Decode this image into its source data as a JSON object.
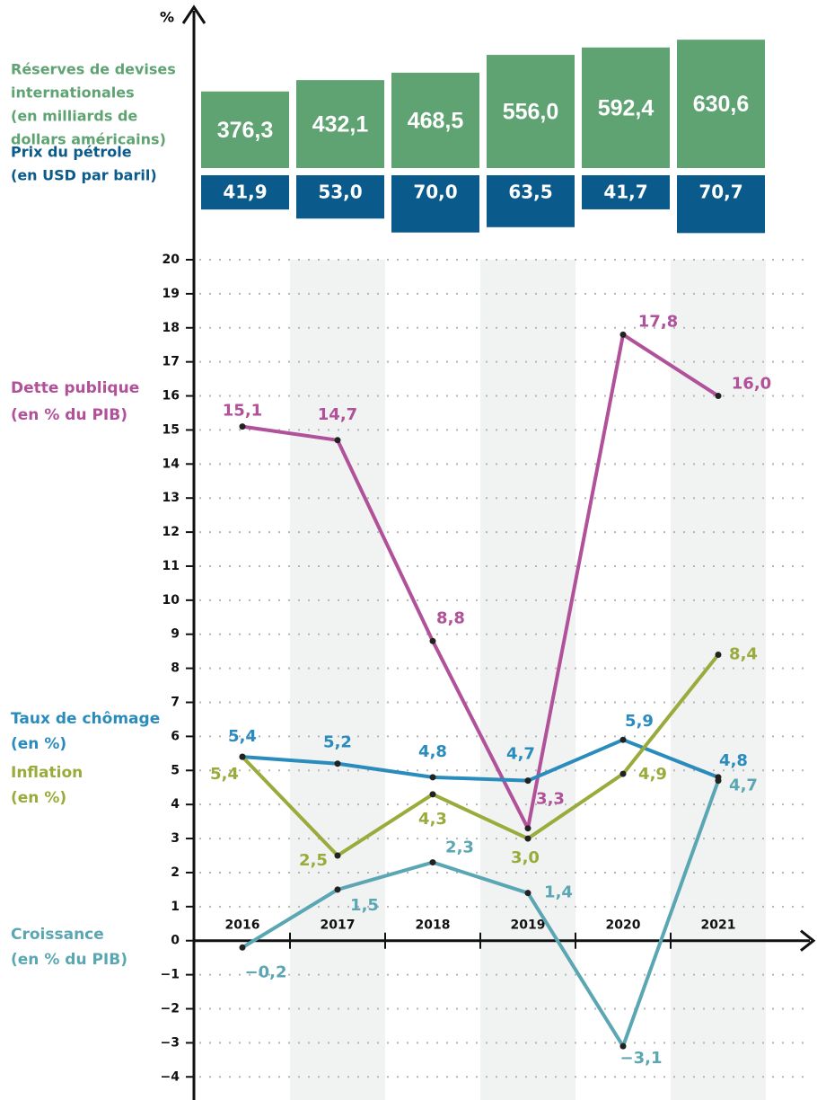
{
  "chart_data": {
    "type": "line",
    "y_label": "%",
    "categories": [
      "2016",
      "2017",
      "2018",
      "2019",
      "2020",
      "2021"
    ],
    "ylim": [
      -4.6,
      20
    ],
    "yticks": [
      {
        "value": -4,
        "label": "−4"
      },
      {
        "value": -3,
        "label": "−3"
      },
      {
        "value": -2,
        "label": "−2"
      },
      {
        "value": -1,
        "label": "−1"
      },
      0,
      1,
      2,
      3,
      4,
      5,
      6,
      7,
      8,
      9,
      10,
      11,
      12,
      13,
      14,
      15,
      16,
      17,
      18,
      19,
      20
    ],
    "grid": true,
    "series": [
      {
        "label_lines": [
          "Dette publique",
          "(en % du PIB)"
        ],
        "color": "#b0519a",
        "values": [
          15.1,
          14.7,
          8.8,
          3.3,
          17.8,
          16.0
        ],
        "value_labels": [
          "15,1",
          "14,7",
          "8,8",
          "3,3",
          "17,8",
          "16,0"
        ]
      },
      {
        "label_lines": [
          "Taux de chômage",
          "(en %)"
        ],
        "color": "#2a8bbd",
        "values": [
          5.4,
          5.2,
          4.8,
          4.7,
          5.9,
          4.8
        ],
        "value_labels": [
          "5,4",
          "5,2",
          "4,8",
          "4,7",
          "5,9",
          "4,8"
        ]
      },
      {
        "label_lines": [
          "Inflation",
          "(en %)"
        ],
        "color": "#9aab3c",
        "values": [
          5.4,
          2.5,
          4.3,
          3.0,
          4.9,
          8.4
        ],
        "value_labels": [
          "5,4",
          "2,5",
          "4,3",
          "3,0",
          "4,9",
          "8,4"
        ]
      },
      {
        "label_lines": [
          "Croissance",
          "(en % du PIB)"
        ],
        "color": "#5aa7b3",
        "values": [
          -0.2,
          1.5,
          2.3,
          1.4,
          -3.1,
          4.7
        ],
        "value_labels": [
          "−0,2",
          "1,5",
          "2,3",
          "1,4",
          "−3,1",
          "4,7"
        ]
      }
    ],
    "bar_panels": [
      {
        "label_lines": [
          "Réserves de devises",
          "internationales",
          "(en milliards de",
          "dollars américains)"
        ],
        "color": "#5fa373",
        "values": [
          376.3,
          432.1,
          468.5,
          556.0,
          592.4,
          630.6
        ],
        "value_labels": [
          "376,3",
          "432,1",
          "468,5",
          "556,0",
          "592,4",
          "630,6"
        ]
      },
      {
        "label_lines": [
          "Prix du pétrole",
          "(en USD par baril)"
        ],
        "color": "#0a5a8c",
        "values": [
          41.9,
          53.0,
          70.0,
          63.5,
          41.7,
          70.7
        ],
        "value_labels": [
          "41,9",
          "53,0",
          "70,0",
          "63,5",
          "41,7",
          "70,7"
        ]
      }
    ]
  }
}
